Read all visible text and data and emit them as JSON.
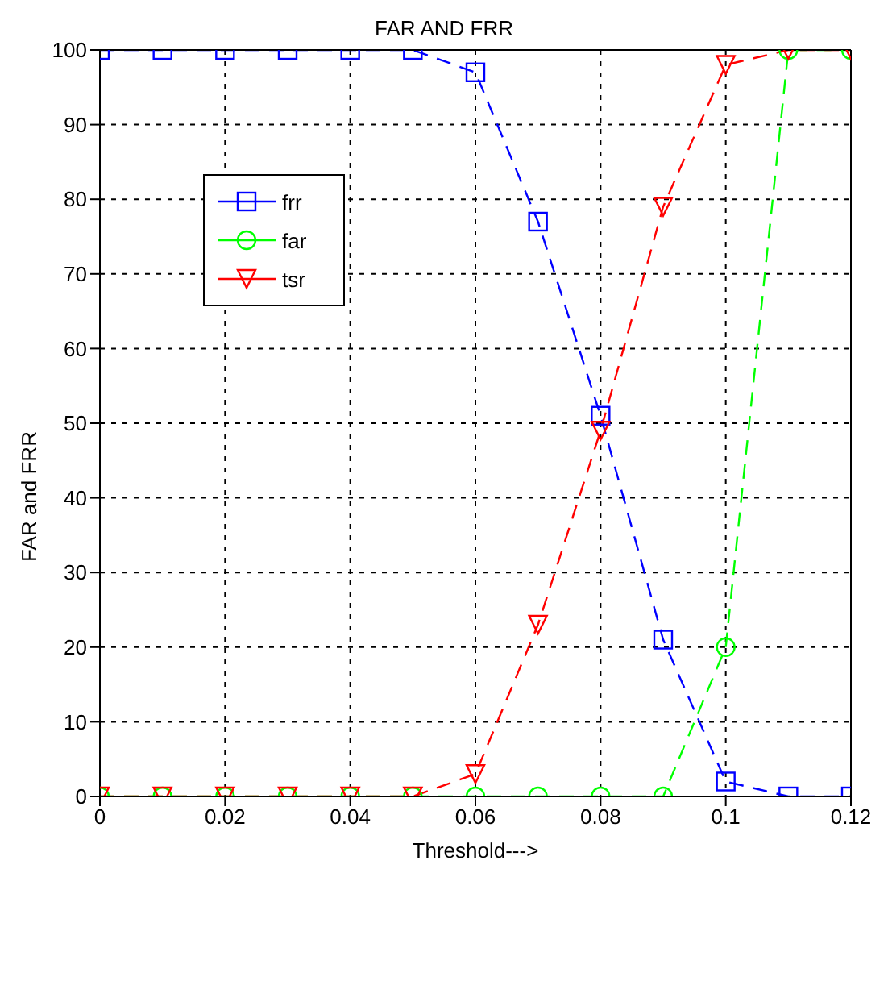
{
  "chart_data": {
    "type": "line",
    "title": "FAR AND FRR",
    "xlabel": "Threshold--->",
    "ylabel": "FAR and FRR",
    "x": [
      0,
      0.01,
      0.02,
      0.03,
      0.04,
      0.05,
      0.06,
      0.07,
      0.08,
      0.09,
      0.1,
      0.11,
      0.12
    ],
    "series": [
      {
        "name": "frr",
        "color": "#0000ff",
        "marker": "square",
        "values": [
          100,
          100,
          100,
          100,
          100,
          100,
          97,
          77,
          51,
          21,
          2,
          0,
          0
        ]
      },
      {
        "name": "far",
        "color": "#00ff00",
        "marker": "circle",
        "values": [
          0,
          0,
          0,
          0,
          0,
          0,
          0,
          0,
          0,
          0,
          20,
          100,
          100
        ]
      },
      {
        "name": "tsr",
        "color": "#ff0000",
        "marker": "triangle",
        "values": [
          0,
          0,
          0,
          0,
          0,
          0,
          3,
          23,
          49,
          79,
          98,
          100,
          100
        ]
      }
    ],
    "xlim": [
      0,
      0.12
    ],
    "xticks": [
      0,
      0.02,
      0.04,
      0.06,
      0.08,
      0.1,
      0.12
    ],
    "ylim": [
      0,
      100
    ],
    "yticks": [
      0,
      10,
      20,
      30,
      40,
      50,
      60,
      70,
      80,
      90,
      100
    ],
    "grid": true,
    "legend": "top left",
    "line_style": "dashed"
  }
}
